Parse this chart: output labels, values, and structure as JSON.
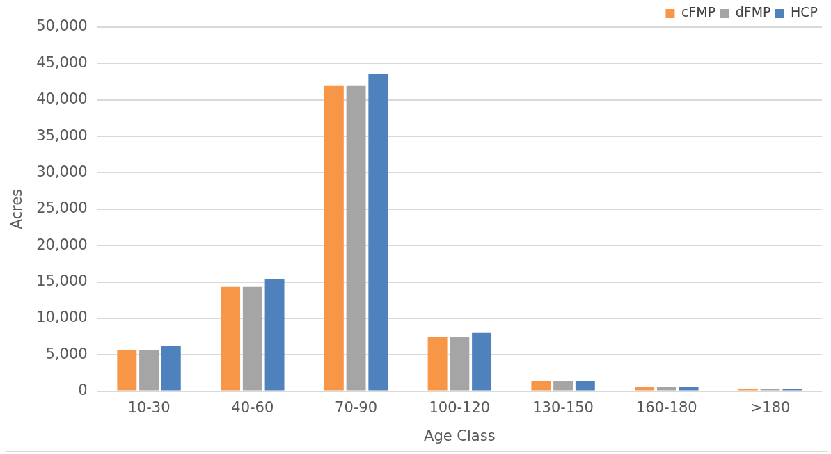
{
  "chart_data": {
    "type": "bar",
    "xlabel": "Age Class",
    "ylabel": "Acres",
    "categories": [
      "10-30",
      "40-60",
      "70-90",
      "100-120",
      "130-150",
      "160-180",
      ">180"
    ],
    "series": [
      {
        "name": "cFMP",
        "color": "#f79646",
        "values": [
          5700,
          14300,
          42000,
          7500,
          1400,
          600,
          300
        ]
      },
      {
        "name": "dFMP",
        "color": "#a5a5a5",
        "values": [
          5700,
          14300,
          42000,
          7500,
          1400,
          600,
          300
        ]
      },
      {
        "name": "HCP",
        "color": "#4f81bd",
        "values": [
          6200,
          15400,
          43500,
          8000,
          1400,
          600,
          300
        ]
      }
    ],
    "ylim": [
      0,
      50000
    ],
    "yticks": [
      0,
      {
        "value": 5000,
        "label": "5,000"
      },
      {
        "value": 10000,
        "label": "10,000"
      },
      {
        "value": 15000,
        "label": "15,000"
      },
      {
        "value": 20000,
        "label": "20,000"
      },
      {
        "value": 25000,
        "label": "25,000"
      },
      {
        "value": 30000,
        "label": "30,000"
      },
      {
        "value": 35000,
        "label": "35,000"
      },
      {
        "value": 40000,
        "label": "40,000"
      },
      {
        "value": 45000,
        "label": "45,000"
      },
      {
        "value": 50000,
        "label": "50,000"
      }
    ],
    "grid": "y",
    "legend": "top right"
  }
}
